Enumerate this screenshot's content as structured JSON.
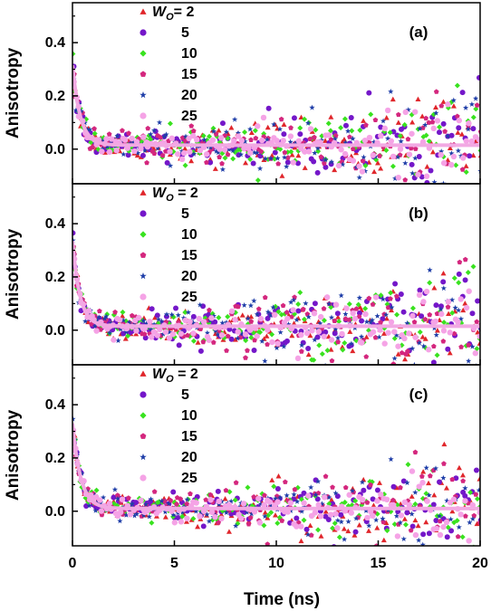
{
  "chart_data": {
    "type": "scatter",
    "xlabel": "Time (ns)",
    "ylabel": "Anisotropy",
    "xlim": [
      0,
      20
    ],
    "xticks": [
      "0",
      "5",
      "10",
      "15",
      "20"
    ],
    "yticks": [
      "0.0",
      "0.2",
      "0.4"
    ],
    "legend_prefix": "W",
    "legend_subscript": "O",
    "legend_placement": "top-left",
    "series": [
      {
        "name": "2",
        "marker": "triangle",
        "color": "#e0262b"
      },
      {
        "name": "5",
        "marker": "circle",
        "color": "#7417c9"
      },
      {
        "name": "10",
        "marker": "diamond",
        "color": "#39e21f"
      },
      {
        "name": "15",
        "marker": "pentagon",
        "color": "#d4277e"
      },
      {
        "name": "20",
        "marker": "star",
        "color": "#1f3ea8"
      },
      {
        "name": "25",
        "marker": "circle",
        "color": "#f5a3e6"
      }
    ],
    "panels": [
      {
        "label": "(a)",
        "ylim": [
          -0.13,
          0.55
        ],
        "r0": 0.3,
        "tau": 0.38,
        "r_inf": 0.015,
        "noise_start": 0.02,
        "noise_end": 0.11
      },
      {
        "label": "(b)",
        "ylim": [
          -0.13,
          0.55
        ],
        "r0": 0.32,
        "tau": 0.36,
        "r_inf": 0.015,
        "noise_start": 0.02,
        "noise_end": 0.12
      },
      {
        "label": "(c)",
        "ylim": [
          -0.13,
          0.55
        ],
        "r0": 0.32,
        "tau": 0.4,
        "r_inf": 0.01,
        "noise_start": 0.02,
        "noise_end": 0.1
      }
    ]
  }
}
